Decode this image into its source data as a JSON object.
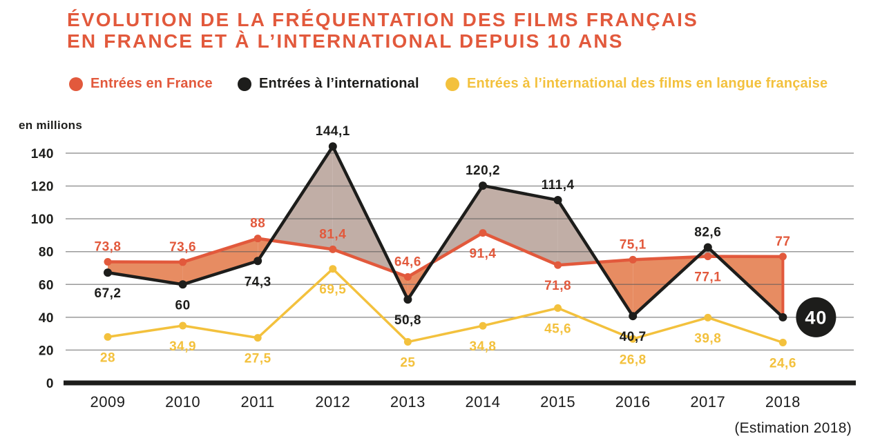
{
  "header": {
    "title_line1": "ÉVOLUTION DE LA FRÉQUENTATION DES FILMS FRANÇAIS",
    "title_line2": "EN FRANCE ET À L’INTERNATIONAL DEPUIS 10 ANS"
  },
  "legend": [
    {
      "label": "Entrées en France",
      "color": "#E2593C"
    },
    {
      "label": "Entrées à l’international",
      "color": "#1D1D1B"
    },
    {
      "label": "Entrées à l’international des films en langue française",
      "color": "#F3C13D"
    }
  ],
  "chart_data": {
    "type": "line",
    "unit_label": "en millions",
    "note": "(Estimation 2018)",
    "x_labels": [
      "2009",
      "2010",
      "2011",
      "2012",
      "2013",
      "2014",
      "2015",
      "2016",
      "2017",
      "2018"
    ],
    "yticks": [
      0,
      20,
      40,
      60,
      80,
      100,
      120,
      140
    ],
    "ylim": [
      0,
      140
    ],
    "grid": true,
    "legend_position": "top",
    "series": [
      {
        "name": "Entrées en France",
        "color": "#E2593C",
        "values": [
          73.8,
          73.6,
          88,
          81.4,
          64.6,
          91.4,
          71.8,
          75.1,
          77.1,
          77
        ],
        "labels": [
          "73,8",
          "73,6",
          "88",
          "81,4",
          "64,6",
          "91,4",
          "71,8",
          "75,1",
          "77,1",
          "77"
        ],
        "label_pos": [
          "above",
          "above",
          "above",
          "above",
          "above",
          "below",
          "below",
          "above",
          "below",
          "above"
        ]
      },
      {
        "name": "Entrées à l’international",
        "color": "#1D1D1B",
        "values": [
          67.2,
          60,
          74.3,
          144.1,
          50.8,
          120.2,
          111.4,
          40.7,
          82.6,
          40
        ],
        "labels": [
          "67,2",
          "60",
          "74,3",
          "144,1",
          "50,8",
          "120,2",
          "111,4",
          "40,7",
          "82,6",
          "40"
        ],
        "label_pos": [
          "below",
          "below",
          "below",
          "above",
          "below",
          "above",
          "above",
          "below",
          "above",
          "badge"
        ]
      },
      {
        "name": "Entrées à l’international des films en langue française",
        "color": "#F3C13D",
        "values": [
          28,
          34.9,
          27.5,
          69.5,
          25,
          34.8,
          45.6,
          26.8,
          39.8,
          24.6
        ],
        "labels": [
          "28",
          "34,9",
          "27,5",
          "69,5",
          "25",
          "34,8",
          "45,6",
          "26,8",
          "39,8",
          "24,6"
        ],
        "label_pos": [
          "below",
          "below",
          "below",
          "below",
          "below",
          "below",
          "below",
          "below",
          "below",
          "below"
        ]
      }
    ],
    "fill_between": {
      "series_a": "Entrées en France",
      "series_b": "Entrées à l’international",
      "color_when_france_above": "#E78C62",
      "color_when_international_above": "#C1AEA6"
    },
    "grid_color": "#8C8C8C",
    "axis_color": "#1D1D1B"
  }
}
